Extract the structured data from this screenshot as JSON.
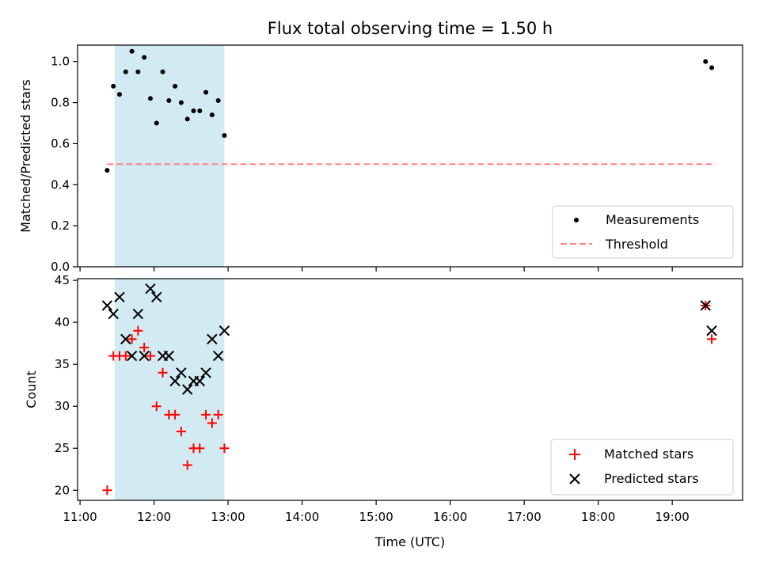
{
  "chart_data": [
    {
      "type": "scatter",
      "title": "Flux total observing time = 1.50 h",
      "xlabel": "",
      "ylabel": "Matched/Predicted stars",
      "ylim": [
        0,
        1.08
      ],
      "yticks": [
        0.0,
        0.2,
        0.4,
        0.6,
        0.8,
        1.0
      ],
      "ytick_labels": [
        "0.0",
        "0.2",
        "0.4",
        "0.6",
        "0.8",
        "1.0"
      ],
      "shaded_span": {
        "x_start": "11:28",
        "x_end": "12:57",
        "color": "#add8e6"
      },
      "legend_position": "lower-right",
      "series": [
        {
          "name": "Measurements",
          "kind": "points",
          "color": "#000000",
          "x": [
            "11:22",
            "11:27",
            "11:32",
            "11:37",
            "11:42",
            "11:47",
            "11:52",
            "11:57",
            "12:02",
            "12:07",
            "12:12",
            "12:17",
            "12:22",
            "12:27",
            "12:32",
            "12:37",
            "12:42",
            "12:47",
            "12:52",
            "12:57",
            "19:27",
            "19:32"
          ],
          "y": [
            0.47,
            0.88,
            0.84,
            0.95,
            1.05,
            0.95,
            1.02,
            0.82,
            0.7,
            0.95,
            0.81,
            0.88,
            0.8,
            0.72,
            0.76,
            0.76,
            0.85,
            0.74,
            0.81,
            0.64,
            1.0,
            0.97
          ]
        },
        {
          "name": "Threshold",
          "kind": "dashed-line",
          "color": "#ff7f7f",
          "x": [
            "11:22",
            "19:32"
          ],
          "y": [
            0.5,
            0.5
          ]
        }
      ]
    },
    {
      "type": "scatter",
      "title": "",
      "xlabel": "Time (UTC)",
      "ylabel": "Count",
      "ylim": [
        18.8,
        45.2
      ],
      "yticks": [
        20,
        25,
        30,
        35,
        40,
        45
      ],
      "ytick_labels": [
        "20",
        "25",
        "30",
        "35",
        "40",
        "45"
      ],
      "xlim": [
        "10:58",
        "19:57"
      ],
      "xticks": [
        "11:00",
        "12:00",
        "13:00",
        "14:00",
        "15:00",
        "16:00",
        "17:00",
        "18:00",
        "19:00"
      ],
      "xtick_labels": [
        "11:00",
        "12:00",
        "13:00",
        "14:00",
        "15:00",
        "16:00",
        "17:00",
        "18:00",
        "19:00"
      ],
      "shaded_span": {
        "x_start": "11:28",
        "x_end": "12:57",
        "color": "#add8e6"
      },
      "legend_position": "lower-right",
      "series": [
        {
          "name": "Matched stars",
          "marker": "plus",
          "color": "#ff0000",
          "x": [
            "11:22",
            "11:27",
            "11:32",
            "11:37",
            "11:42",
            "11:47",
            "11:52",
            "11:57",
            "12:02",
            "12:07",
            "12:12",
            "12:17",
            "12:22",
            "12:27",
            "12:32",
            "12:37",
            "12:42",
            "12:47",
            "12:52",
            "12:57",
            "19:27",
            "19:32"
          ],
          "y": [
            20,
            36,
            36,
            36,
            38,
            39,
            37,
            36,
            30,
            34,
            29,
            29,
            27,
            23,
            25,
            25,
            29,
            28,
            29,
            25,
            42,
            38
          ]
        },
        {
          "name": "Predicted stars",
          "marker": "x",
          "color": "#000000",
          "x": [
            "11:22",
            "11:27",
            "11:32",
            "11:37",
            "11:42",
            "11:47",
            "11:52",
            "11:57",
            "12:02",
            "12:07",
            "12:12",
            "12:17",
            "12:22",
            "12:27",
            "12:32",
            "12:37",
            "12:42",
            "12:47",
            "12:52",
            "12:57",
            "19:27",
            "19:32"
          ],
          "y": [
            42,
            41,
            43,
            38,
            36,
            41,
            36,
            44,
            43,
            36,
            36,
            33,
            34,
            32,
            33,
            33,
            34,
            38,
            36,
            39,
            42,
            39
          ]
        }
      ]
    }
  ]
}
